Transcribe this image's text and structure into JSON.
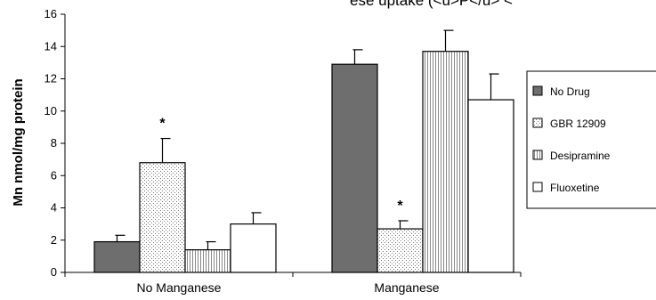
{
  "top_text": "ese uptake (<u>P</u>  <",
  "chart_data": {
    "type": "bar",
    "categories": [
      "No Manganese",
      "Manganese"
    ],
    "ylabel": "Mn nmol/mg protein",
    "xlabel": "",
    "ylim": [
      0,
      16
    ],
    "yticks": [
      0,
      2,
      4,
      6,
      8,
      10,
      12,
      14,
      16
    ],
    "grid": false,
    "legend_position": "right",
    "series": [
      {
        "name": "No Drug",
        "values": [
          1.9,
          12.9
        ],
        "errors": [
          0.4,
          0.9
        ],
        "color": "#6e6e6e",
        "pattern": "solid"
      },
      {
        "name": "GBR 12909",
        "values": [
          6.8,
          2.7
        ],
        "errors": [
          1.5,
          0.5
        ],
        "color": "#ffffff",
        "pattern": "dots"
      },
      {
        "name": "Desipramine",
        "values": [
          1.4,
          13.7
        ],
        "errors": [
          0.5,
          1.3
        ],
        "color": "#ffffff",
        "pattern": "vertical-lines"
      },
      {
        "name": "Fluoxetine",
        "values": [
          3.0,
          10.7
        ],
        "errors": [
          0.7,
          1.6
        ],
        "color": "#ffffff",
        "pattern": "none"
      }
    ],
    "annotations": [
      {
        "text": "*",
        "category": "No Manganese",
        "series": "GBR 12909"
      },
      {
        "text": "*",
        "category": "Manganese",
        "series": "GBR 12909"
      }
    ]
  }
}
